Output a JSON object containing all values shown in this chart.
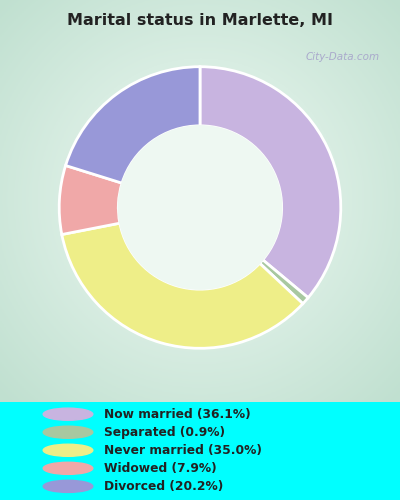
{
  "title": "Marital status in Marlette, MI",
  "background_outer": "#00FFFF",
  "chart_bg_color": "#dff0e8",
  "slices": [
    {
      "label": "Now married (36.1%)",
      "value": 36.1,
      "color": "#c8b4e0"
    },
    {
      "label": "Separated (0.9%)",
      "value": 0.9,
      "color": "#a8c8a0"
    },
    {
      "label": "Never married (35.0%)",
      "value": 35.0,
      "color": "#eeee88"
    },
    {
      "label": "Widowed (7.9%)",
      "value": 7.9,
      "color": "#f0a8a8"
    },
    {
      "label": "Divorced (20.2%)",
      "value": 20.2,
      "color": "#9898d8"
    }
  ],
  "legend_labels": [
    "Now married (36.1%)",
    "Separated (0.9%)",
    "Never married (35.0%)",
    "Widowed (7.9%)",
    "Divorced (20.2%)"
  ],
  "legend_colors": [
    "#c8b4e0",
    "#a8c8a0",
    "#eeee88",
    "#f0a8a8",
    "#9898d8"
  ],
  "title_color": "#222222",
  "legend_text_color": "#222222",
  "watermark": "City-Data.com",
  "start_angle": 90,
  "donut_width": 0.42
}
